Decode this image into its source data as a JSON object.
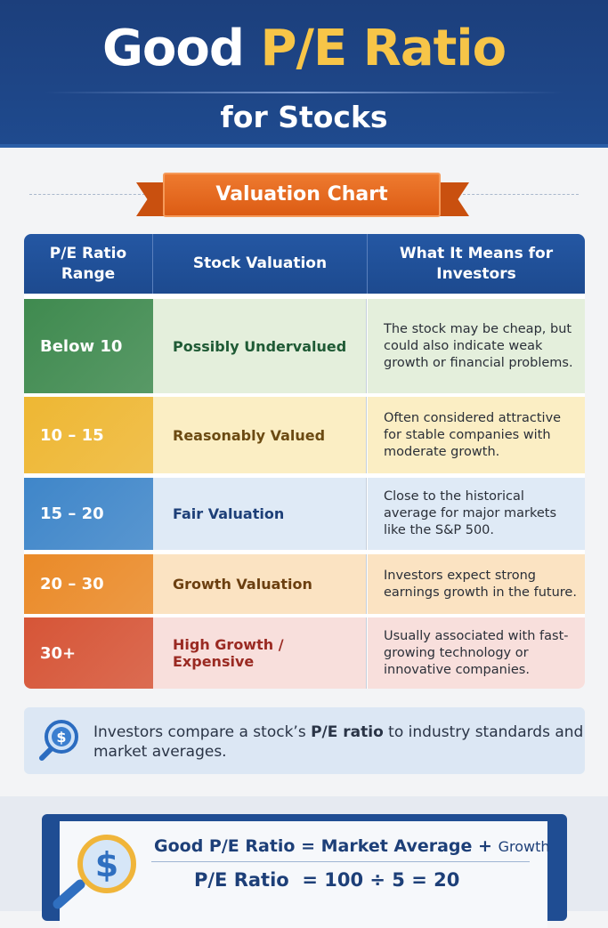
{
  "header": {
    "title_white": "Good",
    "title_yellow": "P/E Ratio",
    "subtitle": "for Stocks"
  },
  "ribbon": {
    "label": "Valuation Chart"
  },
  "table": {
    "headers": [
      "P/E Ratio Range",
      "Stock Valuation",
      "What It Means for Investors"
    ],
    "rows": [
      {
        "range": "Below 10",
        "valuation": "Possibly Undervalued",
        "meaning": "The stock may be cheap, but could also indicate weak growth or financial problems.",
        "color": "#3f8a4f",
        "tint": "#e4efdc",
        "text_color": "#1f5a35"
      },
      {
        "range": "10 – 15",
        "valuation": "Reasonably Valued",
        "meaning": "Often considered attractive for stable companies with moderate growth.",
        "color": "#eeb733",
        "tint": "#fbeec4",
        "text_color": "#6b4a12"
      },
      {
        "range": "15 – 20",
        "valuation": "Fair Valuation",
        "meaning": "Close to the historical average for major markets like the S&P 500.",
        "color": "#3f86c9",
        "tint": "#dfeaf6",
        "text_color": "#1d3f78"
      },
      {
        "range": "20 – 30",
        "valuation": "Growth Valuation",
        "meaning": "Investors expect strong earnings growth in the future.",
        "color": "#ea8a28",
        "tint": "#fbe3c2",
        "text_color": "#6b3f10"
      },
      {
        "range": "30+",
        "valuation": "High Growth / Expensive",
        "meaning": "Usually associated with fast-growing technology or innovative companies.",
        "color": "#d65537",
        "tint": "#f8dfdc",
        "text_color": "#9a2a22"
      }
    ]
  },
  "callout": {
    "icon": "magnifier-dollar-icon",
    "text_before": "Investors compare a stock’s ",
    "text_bold": "P/E ratio",
    "text_after": " to industry standards and market averages."
  },
  "formula": {
    "icon": "magnifier-dollar-icon",
    "line1_main": "Good P/E Ratio = Market Average +",
    "line1_tail": "Growth",
    "line2": "P/E Ratio  = 100 ÷ 5 = 20"
  }
}
